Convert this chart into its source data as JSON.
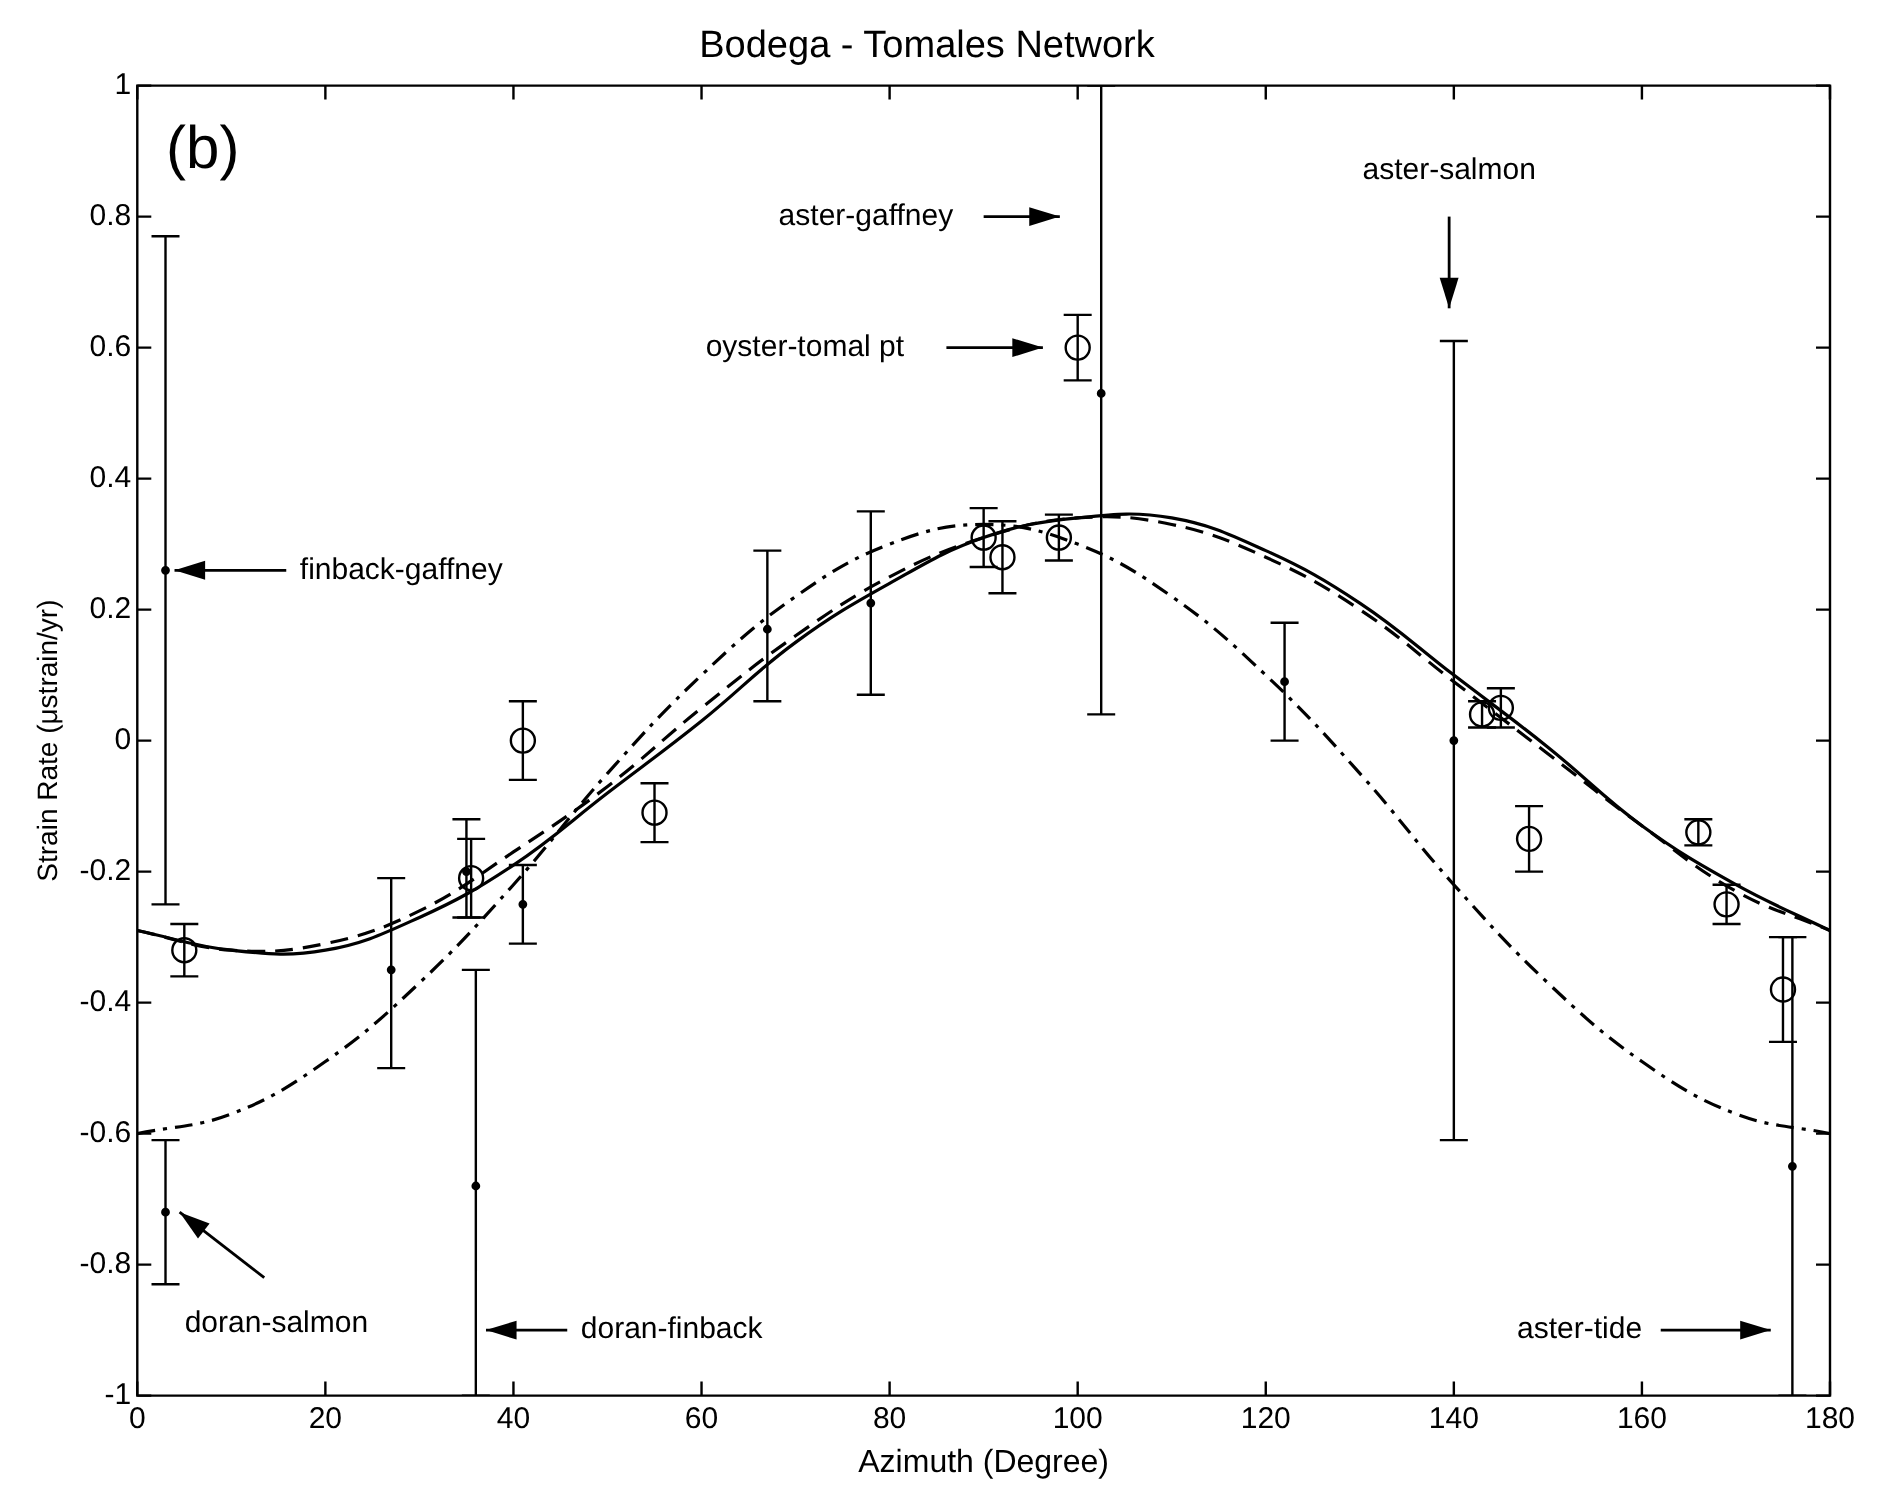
{
  "chart_data": {
    "type": "scatter",
    "title": "Bodega - Tomales Network",
    "xlabel": "Azimuth (Degree)",
    "ylabel": "Strain Rate (μstrain/yr)",
    "xlim": [
      0,
      180
    ],
    "xticks": [
      0,
      20,
      40,
      60,
      80,
      100,
      120,
      140,
      160,
      180
    ],
    "ylim": [
      -1,
      1
    ],
    "yticks": [
      -1,
      -0.8,
      -0.6,
      -0.4,
      -0.2,
      0,
      0.2,
      0.4,
      0.6,
      0.8,
      1
    ],
    "grid": false,
    "legend": false,
    "series": [
      {
        "color": "#000000",
        "marker": "circle",
        "x": [
          5,
          35.5,
          41,
          55,
          90,
          92,
          98,
          100,
          143,
          145,
          148,
          166,
          169,
          175
        ],
        "values": [
          -0.32,
          -0.21,
          0,
          -0.11,
          0.31,
          0.28,
          0.31,
          0.6,
          0.04,
          0.05,
          -0.15,
          -0.14,
          -0.25,
          -0.38
        ],
        "errors": [
          0.04,
          0.06,
          0.06,
          0.045,
          0.045,
          0.055,
          0.035,
          0.05,
          0.02,
          0.03,
          0.05,
          0.02,
          0.03,
          0.08
        ]
      },
      {
        "color": "#000000",
        "marker": "circle",
        "x": [
          3,
          3,
          27,
          35,
          36,
          41,
          67,
          78,
          102.5,
          122,
          140,
          176
        ],
        "values": [
          0.26,
          -0.72,
          -0.35,
          -0.2,
          -0.68,
          -0.25,
          0.17,
          0.21,
          0.53,
          0.09,
          0,
          -0.65
        ],
        "errors": [
          [
            -0.25,
            0.77
          ],
          [
            -0.83,
            -0.61
          ],
          [
            -0.5,
            -0.21
          ],
          [
            -0.27,
            -0.12
          ],
          [
            -1,
            -0.35
          ],
          [
            -0.31,
            -0.19
          ],
          [
            0.06,
            0.29
          ],
          [
            0.07,
            0.35
          ],
          [
            0.04,
            1
          ],
          [
            0,
            0.18
          ],
          [
            -0.61,
            0.61
          ],
          [
            -1,
            -0.3
          ]
        ]
      },
      {
        "type": "line",
        "color": "#000000",
        "marker": "none",
        "line_style": "solid",
        "x": [
          0,
          10,
          20,
          30,
          40,
          50,
          60,
          70,
          80,
          90,
          100,
          110,
          120,
          130,
          140,
          150,
          160,
          170,
          180
        ],
        "values": [
          -0.29,
          -0.32,
          -0.32,
          -0.27,
          -0.19,
          -0.08,
          0.03,
          0.15,
          0.24,
          0.31,
          0.34,
          0.34,
          0.29,
          0.21,
          0.1,
          -0.01,
          -0.13,
          -0.22,
          -0.29
        ]
      },
      {
        "type": "line",
        "color": "#000000",
        "marker": "none",
        "line_style": "dashed",
        "x": [
          0,
          10,
          20,
          30,
          40,
          50,
          60,
          70,
          80,
          90,
          100,
          110,
          120,
          130,
          140,
          150,
          160,
          170,
          180
        ],
        "values": [
          -0.29,
          -0.32,
          -0.31,
          -0.26,
          -0.17,
          -0.07,
          0.05,
          0.16,
          0.25,
          0.31,
          0.34,
          0.33,
          0.28,
          0.2,
          0.09,
          -0.02,
          -0.13,
          -0.23,
          -0.29
        ]
      },
      {
        "type": "line",
        "color": "#000000",
        "marker": "none",
        "line_style": "dashdot",
        "x": [
          0,
          10,
          20,
          30,
          40,
          50,
          60,
          70,
          80,
          90,
          100,
          110,
          120,
          130,
          140,
          150,
          160,
          170,
          180
        ],
        "values": [
          -0.6,
          -0.57,
          -0.49,
          -0.37,
          -0.22,
          -0.05,
          0.1,
          0.22,
          0.3,
          0.33,
          0.3,
          0.22,
          0.1,
          -0.05,
          -0.22,
          -0.37,
          -0.49,
          -0.57,
          -0.6
        ]
      }
    ],
    "annotations": [
      "(b)",
      "finback-gaffney",
      "doran-salmon",
      "doran-finback",
      "aster-gaffney",
      "oyster-tomal pt",
      "aster-salmon",
      "aster-tide"
    ]
  }
}
